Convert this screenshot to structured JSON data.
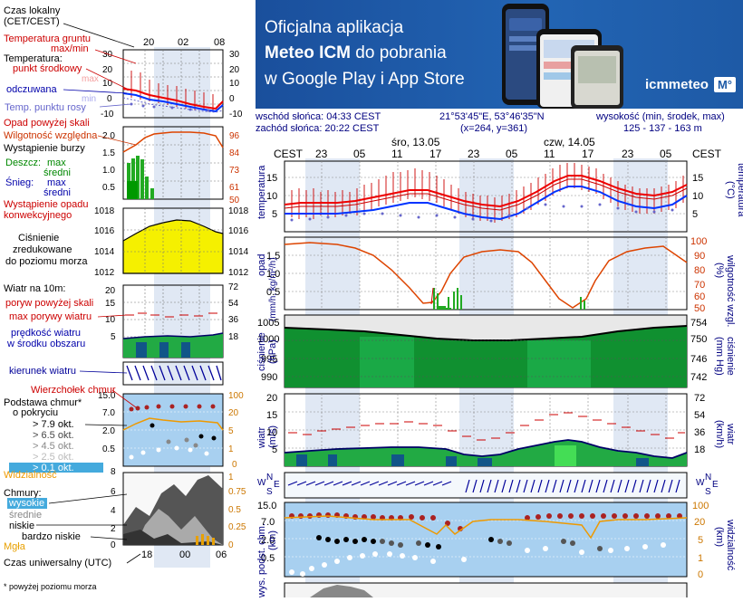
{
  "legend": {
    "time_local": [
      "Czas lokalny",
      "(CET/CEST)"
    ],
    "time_local_ticks": [
      "20",
      "02",
      "08"
    ],
    "temp_ground": [
      "Temperatura gruntu",
      "max/min"
    ],
    "temp_label": "Temperatura:",
    "temp_mid": "punkt środkowy",
    "temp_max": "max",
    "temp_min": "min",
    "temp_feel": "odczuwana",
    "temp_feel_max": "max",
    "temp_feel_min": "min",
    "temp_dew": "Temp. punktu rosy",
    "temp_axis": [
      "30",
      "20",
      "10",
      "0",
      "-10"
    ],
    "precip_above": "Opad powyżej skali",
    "humidity": "Wilgotność względna",
    "storm": "Wystąpienie burzy",
    "rain_label": "Deszcz:",
    "snow_label": "Śnieg:",
    "max": "max",
    "mean": "średni",
    "occurrence": [
      "Wystąpienie opadu",
      "konwekcyjnego"
    ],
    "precip_axis": [
      "2.0",
      "1.5",
      "1.0",
      "0.5"
    ],
    "humid_axis": [
      "96",
      "84",
      "73",
      "61",
      "50"
    ],
    "pressure_axis": [
      "1018",
      "1016",
      "1014",
      "1012"
    ],
    "pressure": [
      "Ciśnienie",
      "zredukowane",
      "do poziomu morza"
    ],
    "wind_label": "Wiatr na 10m:",
    "wind_gust_above": "poryw powyżej skali",
    "wind_gust": "max porywy wiatru",
    "wind_speed": [
      "prędkość wiatru",
      "w środku obszaru"
    ],
    "wind_axis": [
      "20",
      "15",
      "10",
      "5"
    ],
    "wind_axis_r": [
      "72",
      "54",
      "36",
      "18"
    ],
    "wind_dir": "kierunek wiatru",
    "cloud_top": "Wierzchołek chmur",
    "cloud_base": [
      "Podstawa chmur*",
      "o pokryciu"
    ],
    "okt": [
      "> 7.9 okt.",
      "> 6.5 okt.",
      "> 4.5 okt.",
      "> 2.5 okt.",
      "> 0.1 okt."
    ],
    "base_axis": [
      "15.0",
      "7.0",
      "2.0",
      "0.5"
    ],
    "base_axis_r": [
      "100",
      "20",
      "5",
      "1"
    ],
    "visibility": "Widzialność",
    "clouds_label": "Chmury:",
    "cloud_levels": [
      "wysokie",
      "średnie",
      "niskie",
      "bardzo niskie"
    ],
    "fog": "Mgła",
    "cloud_axis": [
      "6",
      "4",
      "2",
      "0"
    ],
    "cloud_axis_r": [
      "1",
      "0.75",
      "0.5",
      "0.25",
      "0"
    ],
    "utc": "Czas uniwersalny (UTC)",
    "utc_ticks": [
      "18",
      "00",
      "06"
    ],
    "vis_zero": "0",
    "vis_eight": "8",
    "footnote": "* powyżej poziomu morza"
  },
  "banner": {
    "line1": "Oficjalna aplikacja",
    "line2_bold": "Meteo ICM",
    "line2_rest": "do pobrania",
    "line3": "w Google Play i App Store",
    "logo": "icmmeteo",
    "logo_badge": "M°"
  },
  "info": {
    "sunrise": "wschód słońca: 04:33 CEST",
    "sunset": "zachód słońca: 20:22 CEST",
    "coords": "21°53'45\"E, 53°46'35\"N",
    "grid": "(x=264, y=361)",
    "height_label": "wysokość (min, środek, max)",
    "height_values": "125 - 137 - 163 m"
  },
  "timeline": {
    "cest": "CEST",
    "day1": "śro, 13.05",
    "day2": "czw, 14.05",
    "hours": [
      "23",
      "05",
      "11",
      "17",
      "23",
      "05",
      "11",
      "17",
      "23",
      "05"
    ]
  },
  "panels": {
    "temp_label": "temperatura",
    "temp_unit": "(°C)",
    "temp_axis": [
      "15",
      "10",
      "5"
    ],
    "precip_label": "opad",
    "precip_unit": "(mm/h, kg/m²/h)",
    "precip_axis": [
      "1.5",
      "1.0",
      "0.5"
    ],
    "humid_label": "wilgotność wzgl.",
    "humid_unit": "(%)",
    "humid_axis": [
      "100",
      "90",
      "80",
      "70",
      "60",
      "50"
    ],
    "pressure_label": "ciśnienie",
    "pressure_unit": "(hPa)",
    "pressure_axis": [
      "1005",
      "1000",
      "995",
      "990"
    ],
    "pressure_unit_r": "(mm Hg)",
    "pressure_axis_r": [
      "754",
      "750",
      "746",
      "742"
    ],
    "wind_label": "wiatr",
    "wind_unit": "(m/s)",
    "wind_axis": [
      "20",
      "15",
      "10",
      "5"
    ],
    "wind_unit_r": "(km/h)",
    "wind_axis_r": [
      "72",
      "54",
      "36",
      "18"
    ],
    "dir_label_w": "W",
    "dir_label_n": "N",
    "dir_label_s": "S",
    "dir_label_e": "E",
    "cloud_label": "wys. podst. chm.",
    "cloud_unit": "(km)",
    "cloud_axis": [
      "15.0",
      "7.0",
      "2.0",
      "0.5"
    ],
    "vis_label": "widzialność",
    "vis_unit": "(km)",
    "vis_axis": [
      "100",
      "20",
      "5",
      "1",
      "0"
    ]
  },
  "colors": {
    "banner": "#1e5aa6",
    "temp_red": "#ee0000",
    "temp_blue": "#0033ff",
    "humidity": "#dd4400",
    "pressure_fill": "#f5f000",
    "wind_fill": "#22aa44",
    "night": "#e0e8f4"
  }
}
